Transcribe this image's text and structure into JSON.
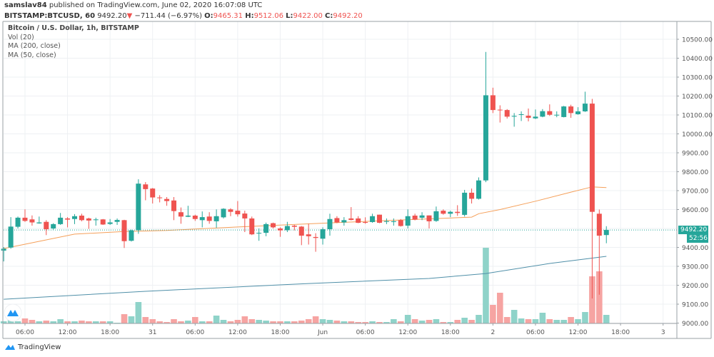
{
  "header": {
    "author": "samslav84",
    "published_text": " published on TradingView.com, June 02, 2020 16:07:08 UTC",
    "symbol": "BITSTAMP:BTCUSD, 60",
    "last": "9492.20",
    "direction_icon": "triangle-down-icon",
    "change": "−711.44 (−6.97%)",
    "o_label": "O:",
    "o": "9465.31",
    "h_label": "H:",
    "h": "9512.06",
    "l_label": "L:",
    "l": "9422.00",
    "c_label": "C:",
    "c": "9492.20"
  },
  "legend": {
    "title": "Bitcoin / U.S. Dollar, 1h, BITSTAMP",
    "vol": "Vol (20)",
    "ma200": "MA (200, close)",
    "ma50": "MA (50, close)"
  },
  "price_axis": {
    "labels": [
      "10500.00",
      "10400.00",
      "10300.00",
      "10200.00",
      "10100.00",
      "10000.00",
      "9900.00",
      "9800.00",
      "9700.00",
      "9600.00",
      "9400.00",
      "9300.00",
      "9200.00",
      "9100.00",
      "9000.00"
    ],
    "current_price": "9492.20",
    "countdown": "52:56"
  },
  "footer": {
    "brand": "TradingView"
  },
  "colors": {
    "up": "#26a69a",
    "down": "#ef5350",
    "vol_up": "#8fd3c9",
    "vol_down": "#f6a4a2",
    "ma50": "#f5a05a",
    "ma200": "#4f8fa8"
  },
  "chart_data": {
    "type": "candlestick",
    "interval": "1h",
    "ylim": [
      9000,
      10550
    ],
    "grid": true,
    "x_ticks": [
      {
        "t": "05-30 06:00",
        "label": "06:00"
      },
      {
        "t": "05-30 12:00",
        "label": "12:00"
      },
      {
        "t": "05-30 18:00",
        "label": "18:00"
      },
      {
        "t": "05-31 00:00",
        "label": "31"
      },
      {
        "t": "05-31 06:00",
        "label": "06:00"
      },
      {
        "t": "05-31 12:00",
        "label": "12:00"
      },
      {
        "t": "05-31 18:00",
        "label": "18:00"
      },
      {
        "t": "06-01 00:00",
        "label": "Jun"
      },
      {
        "t": "06-01 06:00",
        "label": "06:00"
      },
      {
        "t": "06-01 12:00",
        "label": "12:00"
      },
      {
        "t": "06-01 18:00",
        "label": "18:00"
      },
      {
        "t": "06-02 00:00",
        "label": "2"
      },
      {
        "t": "06-02 06:00",
        "label": "06:00"
      },
      {
        "t": "06-02 12:00",
        "label": "12:00"
      },
      {
        "t": "06-02 18:00",
        "label": "18:00"
      },
      {
        "t": "06-03 00:00",
        "label": "3"
      }
    ],
    "y_ticks": [
      9000,
      9100,
      9200,
      9300,
      9400,
      9500,
      9600,
      9700,
      9800,
      9900,
      10000,
      10100,
      10200,
      10300,
      10400,
      10500
    ],
    "candles_columns": [
      "t",
      "open",
      "high",
      "low",
      "close",
      "volume"
    ],
    "candles": [
      [
        "05-30 03:00",
        9383,
        9402,
        9326,
        9393,
        3
      ],
      [
        "05-30 04:00",
        9399,
        9560,
        9393,
        9510,
        7
      ],
      [
        "05-30 05:00",
        9509,
        9563,
        9500,
        9557,
        3
      ],
      [
        "05-30 06:00",
        9557,
        9601,
        9535,
        9540,
        7
      ],
      [
        "05-30 07:00",
        9548,
        9569,
        9515,
        9532,
        5
      ],
      [
        "05-30 08:00",
        9527,
        9563,
        9525,
        9532,
        3
      ],
      [
        "05-30 09:00",
        9535,
        9544,
        9465,
        9496,
        4
      ],
      [
        "05-30 10:00",
        9500,
        9528,
        9494,
        9523,
        3
      ],
      [
        "05-30 11:00",
        9523,
        9582,
        9519,
        9557,
        6
      ],
      [
        "05-30 12:00",
        9553,
        9560,
        9506,
        9547,
        3
      ],
      [
        "05-30 13:00",
        9550,
        9576,
        9523,
        9565,
        3
      ],
      [
        "05-30 14:00",
        9568,
        9578,
        9538,
        9544,
        4
      ],
      [
        "05-30 15:00",
        9553,
        9557,
        9498,
        9542,
        3
      ],
      [
        "05-30 16:00",
        9544,
        9557,
        9515,
        9548,
        3
      ],
      [
        "05-30 17:00",
        9548,
        9550,
        9519,
        9521,
        3
      ],
      [
        "05-30 18:00",
        9524,
        9550,
        9519,
        9532,
        3
      ],
      [
        "05-30 19:00",
        9535,
        9553,
        9519,
        9545,
        1
      ],
      [
        "05-30 20:00",
        9544,
        9546,
        9397,
        9433,
        13
      ],
      [
        "05-30 21:00",
        9435,
        9494,
        9431,
        9490,
        10
      ],
      [
        "05-30 22:00",
        9491,
        9760,
        9472,
        9737,
        30
      ],
      [
        "05-30 23:00",
        9733,
        9745,
        9649,
        9708,
        9
      ],
      [
        "05-31 00:00",
        9711,
        9714,
        9632,
        9664,
        6
      ],
      [
        "05-31 01:00",
        9664,
        9676,
        9638,
        9660,
        3
      ],
      [
        "05-31 02:00",
        9656,
        9666,
        9620,
        9645,
        2
      ],
      [
        "05-31 03:00",
        9648,
        9666,
        9544,
        9592,
        6
      ],
      [
        "05-31 04:00",
        9586,
        9611,
        9525,
        9563,
        3
      ],
      [
        "05-31 05:00",
        9562,
        9620,
        9560,
        9568,
        4
      ],
      [
        "05-31 06:00",
        9568,
        9573,
        9540,
        9550,
        9
      ],
      [
        "05-31 07:00",
        9544,
        9590,
        9506,
        9560,
        3
      ],
      [
        "05-31 08:00",
        9563,
        9586,
        9525,
        9540,
        3
      ],
      [
        "05-31 09:00",
        9538,
        9601,
        9503,
        9565,
        11
      ],
      [
        "05-31 10:00",
        9559,
        9607,
        9553,
        9604,
        5
      ],
      [
        "05-31 11:00",
        9601,
        9607,
        9565,
        9588,
        3
      ],
      [
        "05-31 12:00",
        9594,
        9645,
        9563,
        9575,
        5
      ],
      [
        "05-31 13:00",
        9579,
        9594,
        9481,
        9553,
        10
      ],
      [
        "05-31 14:00",
        9553,
        9563,
        9465,
        9469,
        6
      ],
      [
        "05-31 15:00",
        9475,
        9500,
        9435,
        9477,
        5
      ],
      [
        "05-31 16:00",
        9477,
        9531,
        9459,
        9523,
        4
      ],
      [
        "05-31 17:00",
        9528,
        9531,
        9500,
        9506,
        3
      ],
      [
        "05-31 18:00",
        9500,
        9506,
        9456,
        9490,
        3
      ],
      [
        "05-31 19:00",
        9491,
        9535,
        9481,
        9513,
        3
      ],
      [
        "05-31 20:00",
        9515,
        9519,
        9490,
        9509,
        3
      ],
      [
        "05-31 21:00",
        9510,
        9513,
        9412,
        9462,
        4
      ],
      [
        "05-31 22:00",
        9469,
        9525,
        9415,
        9459,
        6
      ],
      [
        "05-31 23:00",
        9455,
        9475,
        9377,
        9450,
        10
      ],
      [
        "06-01 00:00",
        9446,
        9506,
        9415,
        9496,
        6
      ],
      [
        "06-01 01:00",
        9496,
        9578,
        9462,
        9550,
        5
      ],
      [
        "06-01 02:00",
        9555,
        9565,
        9528,
        9532,
        4
      ],
      [
        "06-01 03:00",
        9532,
        9560,
        9515,
        9544,
        3
      ],
      [
        "06-01 04:00",
        9553,
        9613,
        9543,
        9545,
        3
      ],
      [
        "06-01 05:00",
        9553,
        9565,
        9528,
        9530,
        2
      ],
      [
        "06-01 06:00",
        9534,
        9559,
        9525,
        9530,
        2
      ],
      [
        "06-01 07:00",
        9534,
        9578,
        9530,
        9565,
        3
      ],
      [
        "06-01 08:00",
        9573,
        9573,
        9528,
        9530,
        2
      ],
      [
        "06-01 09:00",
        9535,
        9553,
        9523,
        9539,
        2
      ],
      [
        "06-01 10:00",
        9534,
        9553,
        9515,
        9538,
        6
      ],
      [
        "06-01 11:00",
        9544,
        9550,
        9510,
        9513,
        3
      ],
      [
        "06-01 12:00",
        9515,
        9601,
        9500,
        9565,
        12
      ],
      [
        "06-01 13:00",
        9568,
        9578,
        9543,
        9547,
        6
      ],
      [
        "06-01 14:00",
        9557,
        9586,
        9544,
        9569,
        4
      ],
      [
        "06-01 15:00",
        9569,
        9569,
        9500,
        9538,
        5
      ],
      [
        "06-01 16:00",
        9540,
        9616,
        9535,
        9591,
        6
      ],
      [
        "06-01 17:00",
        9594,
        9601,
        9573,
        9578,
        2
      ],
      [
        "06-01 18:00",
        9578,
        9594,
        9560,
        9588,
        2
      ],
      [
        "06-01 19:00",
        9588,
        9623,
        9567,
        9582,
        5
      ],
      [
        "06-01 20:00",
        9572,
        9704,
        9563,
        9689,
        8
      ],
      [
        "06-01 21:00",
        9689,
        9711,
        9632,
        9657,
        5
      ],
      [
        "06-01 22:00",
        9657,
        9770,
        9653,
        9754,
        12
      ],
      [
        "06-01 23:00",
        9754,
        10433,
        9745,
        10204,
        106
      ],
      [
        "06-02 00:00",
        10204,
        10244,
        10110,
        10126,
        26
      ],
      [
        "06-02 01:00",
        10128,
        10151,
        10060,
        10125,
        43
      ],
      [
        "06-02 02:00",
        10126,
        10131,
        10081,
        10091,
        9
      ],
      [
        "06-02 03:00",
        10091,
        10110,
        10038,
        10095,
        19
      ],
      [
        "06-02 04:00",
        10100,
        10119,
        10068,
        10104,
        7
      ],
      [
        "06-02 05:00",
        10096,
        10134,
        10066,
        10085,
        6
      ],
      [
        "06-02 06:00",
        10082,
        10129,
        10078,
        10091,
        6
      ],
      [
        "06-02 07:00",
        10091,
        10131,
        10088,
        10120,
        15
      ],
      [
        "06-02 08:00",
        10120,
        10156,
        10095,
        10101,
        6
      ],
      [
        "06-02 09:00",
        10099,
        10119,
        10088,
        10101,
        5
      ],
      [
        "06-02 10:00",
        10089,
        10148,
        10087,
        10145,
        5
      ],
      [
        "06-02 11:00",
        10145,
        10154,
        10085,
        10110,
        9
      ],
      [
        "06-02 12:00",
        10104,
        10141,
        10101,
        10119,
        6
      ],
      [
        "06-02 13:00",
        10119,
        10223,
        10116,
        10160,
        16
      ],
      [
        "06-02 14:00",
        10160,
        10185,
        9130,
        9588,
        66
      ],
      [
        "06-02 15:00",
        9578,
        9600,
        9150,
        9462,
        73
      ],
      [
        "06-02 16:00",
        9465.31,
        9512.06,
        9422.0,
        9492.2,
        12
      ]
    ],
    "ma200": [
      [
        "05-30 03:00",
        9126
      ],
      [
        "05-30 23:00",
        9168
      ],
      [
        "05-31 22:00",
        9209
      ],
      [
        "06-01 15:00",
        9236
      ],
      [
        "06-01 23:00",
        9262
      ],
      [
        "06-02 08:00",
        9315
      ],
      [
        "06-02 16:00",
        9353
      ]
    ],
    "ma50": [
      [
        "05-30 03:00",
        9394
      ],
      [
        "05-30 13:00",
        9470
      ],
      [
        "05-30 20:00",
        9484
      ],
      [
        "05-31 02:00",
        9490
      ],
      [
        "05-31 12:00",
        9508
      ],
      [
        "06-01 00:00",
        9528
      ],
      [
        "06-01 11:00",
        9545
      ],
      [
        "06-01 19:00",
        9557
      ],
      [
        "06-01 21:00",
        9560
      ],
      [
        "06-01 22:00",
        9578
      ],
      [
        "06-02 01:00",
        9600
      ],
      [
        "06-02 06:00",
        9644
      ],
      [
        "06-02 11:00",
        9692
      ],
      [
        "06-02 14:00",
        9720
      ],
      [
        "06-02 16:00",
        9716
      ]
    ]
  }
}
